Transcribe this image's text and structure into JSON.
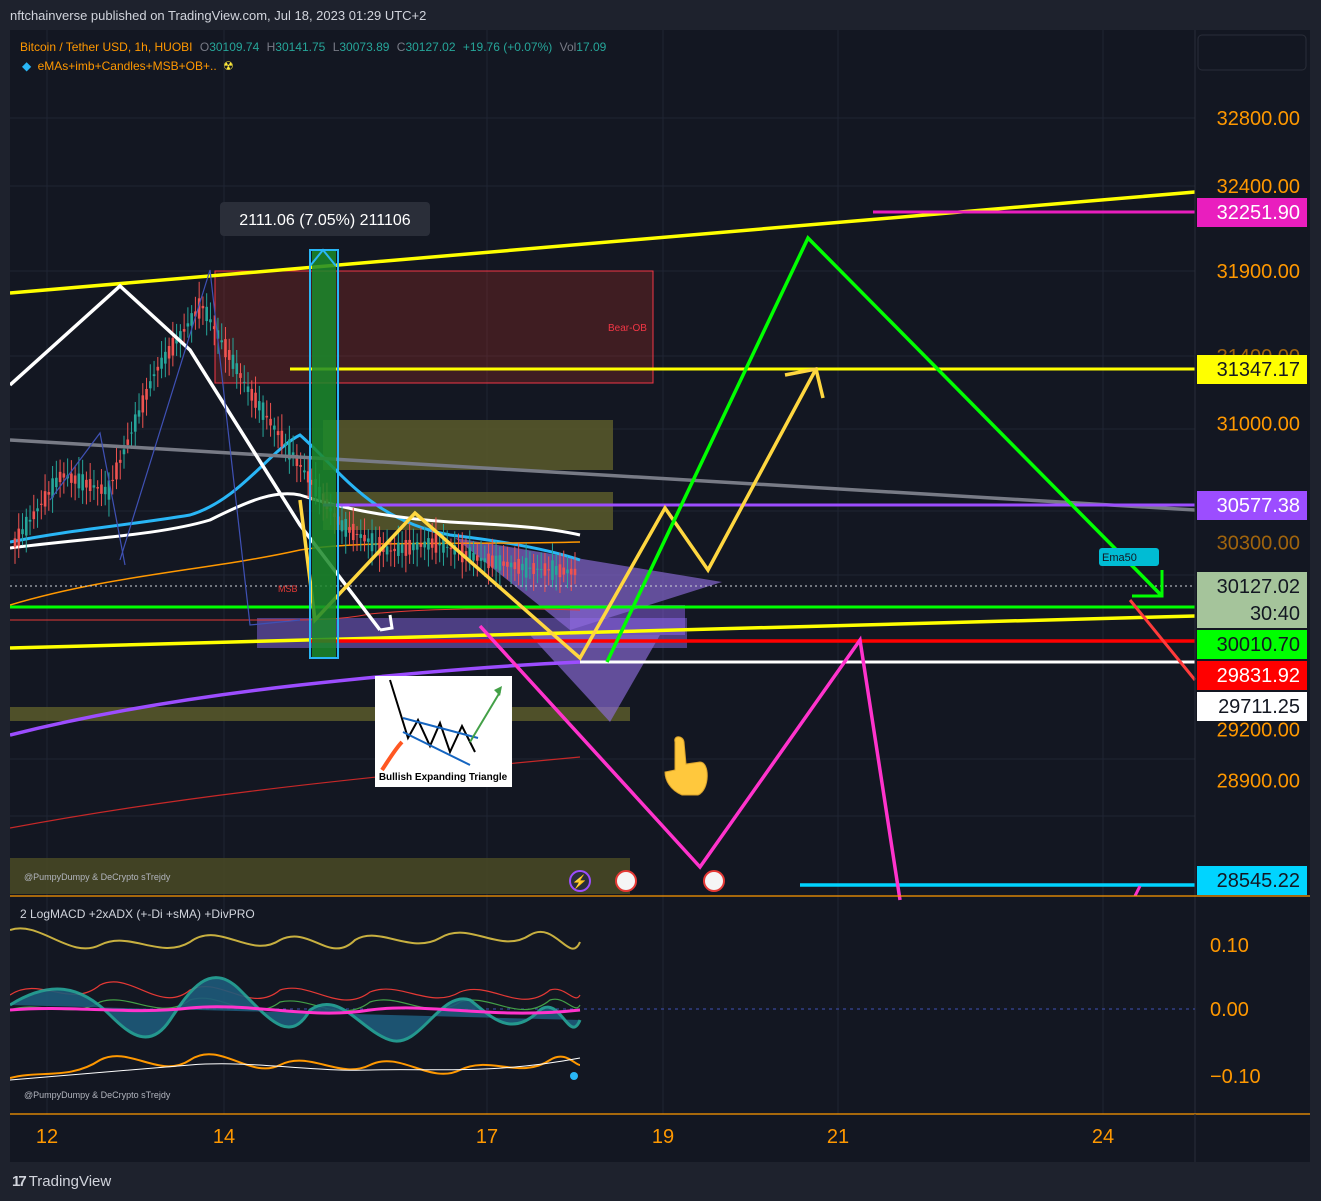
{
  "header": {
    "published": "nftchainverse published on TradingView.com, Jul 18, 2023 01:29 UTC+2"
  },
  "legend": {
    "symbol": "Bitcoin / Tether USD, 1h, HUOBI",
    "o_label": "O",
    "o_value": "30109.74",
    "h_label": "H",
    "h_value": "30141.75",
    "l_label": "L",
    "l_value": "30073.89",
    "c_label": "C",
    "c_value": "30127.02",
    "change": "+19.76 (+0.07%)",
    "vol_label": "Vol",
    "vol_value": "17.09",
    "indicator": "eMAs+imb+Candles+MSB+OB+.."
  },
  "annotations": {
    "measure": "2111.06 (7.05%) 211106",
    "bear_ob": "Bear-OB",
    "msb": "MSB",
    "pattern_title": "Bullish Expanding Triangle",
    "ema_tag": "Ema50",
    "watermark_main": "@PumpyDumpy & DeCrypto sTrejdy",
    "watermark_sub": "@PumpyDumpy & DeCrypto sTrejdy"
  },
  "price_scale": {
    "ticks": [
      "32800.00",
      "32400.00",
      "31900.00",
      "31000.00",
      "29200.00",
      "28900.00"
    ],
    "partial_ticks": [
      "31400.00",
      "30300.00"
    ],
    "labels": [
      {
        "text": "32251.90",
        "bg": "#e91ebe",
        "fg": "#ffffff"
      },
      {
        "text": "31347.17",
        "bg": "#ffff00",
        "fg": "#131722"
      },
      {
        "text": "30577.38",
        "bg": "#9c4dff",
        "fg": "#ffffff"
      },
      {
        "text": "30127.02",
        "bg": "#a5c49b",
        "fg": "#131722"
      },
      {
        "text": "30:40",
        "bg": "#a5c49b",
        "fg": "#131722"
      },
      {
        "text": "30010.70",
        "bg": "#00ff00",
        "fg": "#131722"
      },
      {
        "text": "29831.92",
        "bg": "#ff0000",
        "fg": "#ffffff"
      },
      {
        "text": "29711.25",
        "bg": "#ffffff",
        "fg": "#131722"
      },
      {
        "text": "28545.22",
        "bg": "#00d4ff",
        "fg": "#131722"
      }
    ]
  },
  "macd_pane": {
    "title": "2 LogMACD +2xADX (+-Di +sMA) +DivPRO",
    "ticks": [
      "0.10",
      "0.00",
      "−0.10"
    ]
  },
  "time_axis": {
    "ticks": [
      "12",
      "14",
      "17",
      "19",
      "21",
      "24"
    ]
  },
  "footer": {
    "brand": "TradingView",
    "brand_mark": "17"
  },
  "colors": {
    "background": "#131722",
    "axis_text": "#ff9800",
    "trendline": "#ffff00",
    "projection_green": "#00ff00",
    "projection_pink": "#ff33cc",
    "ema_cyan": "#29b6f6"
  },
  "chart_data": {
    "type": "line",
    "title": "Bitcoin / Tether USD, 1h, HUOBI",
    "xlabel": "",
    "ylabel": "",
    "x_ticks": [
      "12",
      "14",
      "17",
      "19",
      "21",
      "24"
    ],
    "ylim": [
      28400,
      33300
    ],
    "series": [
      {
        "name": "",
        "values": [
          30300,
          30700,
          30600,
          31300,
          31700,
          31200,
          30800,
          30400,
          30250,
          30300,
          30200,
          30150,
          30127.02
        ]
      }
    ],
    "levels": [
      32251.9,
      31347.17,
      30577.38,
      30127.02,
      30010.7,
      29831.92,
      29711.25,
      28545.22
    ],
    "measure_change": 2111.06,
    "measure_change_pct": 7.05,
    "grid": true,
    "legend_position": "top-left"
  }
}
